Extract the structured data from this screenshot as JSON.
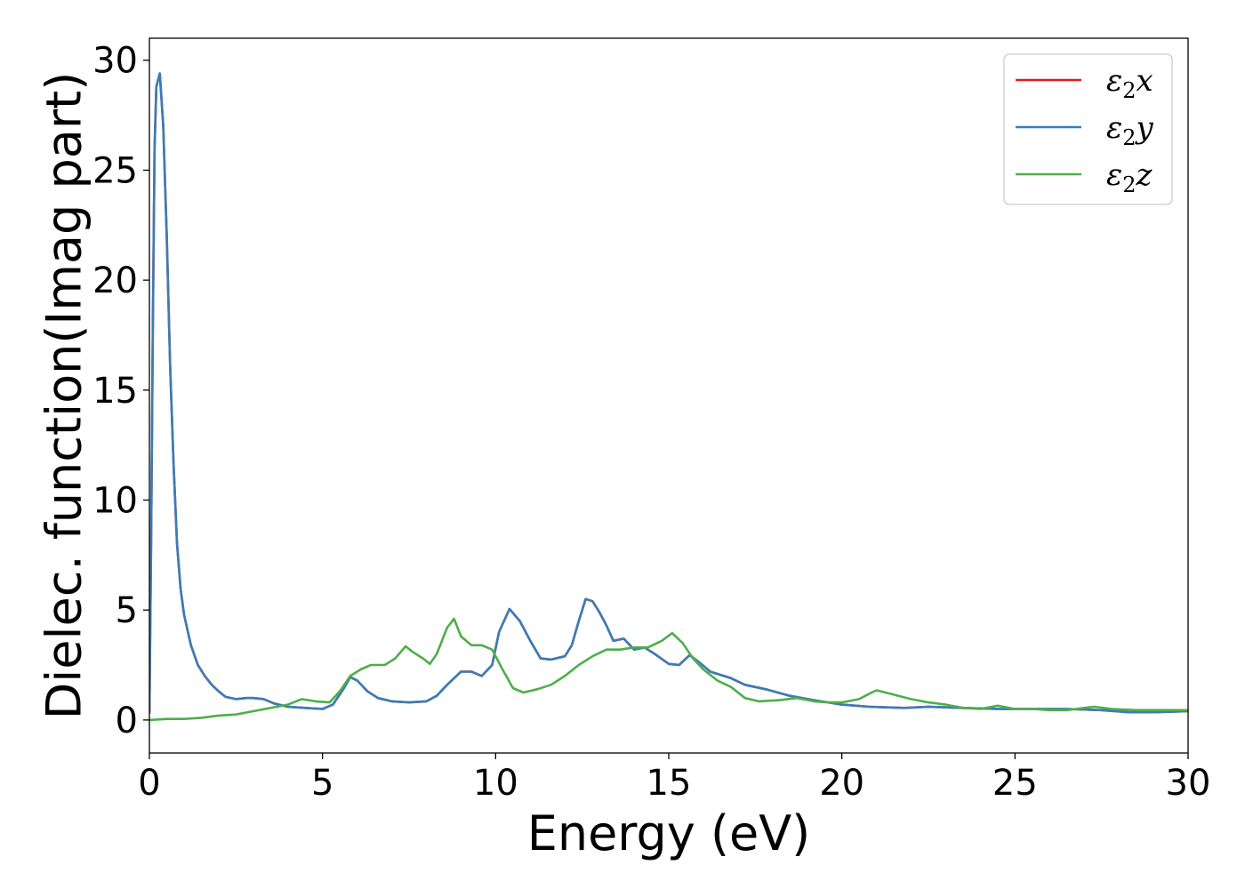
{
  "chart_data": {
    "type": "line",
    "xlabel": "Energy (eV)",
    "ylabel": "Dielec. function(Imag part)",
    "xlim": [
      0,
      30
    ],
    "ylim": [
      -1.5,
      31
    ],
    "xticks": [
      0,
      5,
      10,
      15,
      20,
      25,
      30
    ],
    "yticks": [
      0,
      5,
      10,
      15,
      20,
      25,
      30
    ],
    "grid": false,
    "legend_position": "top-right",
    "series": [
      {
        "name": "ε2x",
        "label_base": "ε",
        "label_sub": "2",
        "label_suffix": "x",
        "color": "#e41a1c",
        "shares_points_with": "ε2y"
      },
      {
        "name": "ε2y",
        "label_base": "ε",
        "label_sub": "2",
        "label_suffix": "y",
        "color": "#377eb8",
        "points": [
          [
            0,
            0.3
          ],
          [
            0.05,
            8
          ],
          [
            0.1,
            18
          ],
          [
            0.15,
            26
          ],
          [
            0.2,
            28.8
          ],
          [
            0.3,
            29.4
          ],
          [
            0.4,
            27
          ],
          [
            0.5,
            22
          ],
          [
            0.6,
            16
          ],
          [
            0.7,
            11.5
          ],
          [
            0.8,
            8
          ],
          [
            0.9,
            6
          ],
          [
            1.0,
            4.8
          ],
          [
            1.2,
            3.4
          ],
          [
            1.4,
            2.5
          ],
          [
            1.6,
            2.0
          ],
          [
            1.8,
            1.6
          ],
          [
            2.0,
            1.3
          ],
          [
            2.2,
            1.05
          ],
          [
            2.5,
            0.95
          ],
          [
            2.8,
            1.0
          ],
          [
            3.0,
            1.0
          ],
          [
            3.3,
            0.95
          ],
          [
            3.6,
            0.75
          ],
          [
            4.0,
            0.6
          ],
          [
            4.5,
            0.55
          ],
          [
            5.0,
            0.5
          ],
          [
            5.3,
            0.7
          ],
          [
            5.6,
            1.4
          ],
          [
            5.8,
            1.95
          ],
          [
            6.0,
            1.8
          ],
          [
            6.3,
            1.3
          ],
          [
            6.6,
            1.0
          ],
          [
            7.0,
            0.85
          ],
          [
            7.5,
            0.8
          ],
          [
            8.0,
            0.85
          ],
          [
            8.3,
            1.1
          ],
          [
            8.6,
            1.6
          ],
          [
            9.0,
            2.2
          ],
          [
            9.3,
            2.2
          ],
          [
            9.6,
            2.0
          ],
          [
            9.9,
            2.5
          ],
          [
            10.1,
            4.0
          ],
          [
            10.4,
            5.05
          ],
          [
            10.7,
            4.5
          ],
          [
            11.0,
            3.6
          ],
          [
            11.3,
            2.8
          ],
          [
            11.6,
            2.75
          ],
          [
            12.0,
            2.9
          ],
          [
            12.2,
            3.4
          ],
          [
            12.4,
            4.5
          ],
          [
            12.6,
            5.5
          ],
          [
            12.8,
            5.4
          ],
          [
            13.0,
            4.9
          ],
          [
            13.2,
            4.3
          ],
          [
            13.4,
            3.6
          ],
          [
            13.7,
            3.7
          ],
          [
            14.0,
            3.2
          ],
          [
            14.3,
            3.3
          ],
          [
            14.6,
            3.0
          ],
          [
            15.0,
            2.55
          ],
          [
            15.3,
            2.5
          ],
          [
            15.6,
            2.95
          ],
          [
            15.9,
            2.6
          ],
          [
            16.2,
            2.2
          ],
          [
            16.8,
            1.9
          ],
          [
            17.2,
            1.6
          ],
          [
            17.8,
            1.4
          ],
          [
            18.5,
            1.1
          ],
          [
            19.2,
            0.9
          ],
          [
            20.0,
            0.7
          ],
          [
            20.8,
            0.6
          ],
          [
            21.8,
            0.55
          ],
          [
            22.5,
            0.6
          ],
          [
            23.5,
            0.55
          ],
          [
            24.5,
            0.5
          ],
          [
            25.5,
            0.5
          ],
          [
            26.5,
            0.5
          ],
          [
            27.5,
            0.45
          ],
          [
            28.3,
            0.35
          ],
          [
            29.0,
            0.35
          ],
          [
            30.0,
            0.4
          ]
        ]
      },
      {
        "name": "ε2z",
        "label_base": "ε",
        "label_sub": "2",
        "label_suffix": "z",
        "color": "#4daf4a",
        "points": [
          [
            0,
            0.0
          ],
          [
            0.5,
            0.05
          ],
          [
            1.0,
            0.05
          ],
          [
            1.5,
            0.1
          ],
          [
            2.0,
            0.2
          ],
          [
            2.5,
            0.25
          ],
          [
            3.0,
            0.4
          ],
          [
            3.5,
            0.55
          ],
          [
            4.0,
            0.7
          ],
          [
            4.4,
            0.95
          ],
          [
            4.8,
            0.85
          ],
          [
            5.2,
            0.8
          ],
          [
            5.5,
            1.3
          ],
          [
            5.8,
            2.0
          ],
          [
            6.1,
            2.3
          ],
          [
            6.4,
            2.5
          ],
          [
            6.8,
            2.5
          ],
          [
            7.1,
            2.8
          ],
          [
            7.4,
            3.35
          ],
          [
            7.6,
            3.1
          ],
          [
            7.9,
            2.8
          ],
          [
            8.1,
            2.55
          ],
          [
            8.3,
            3.0
          ],
          [
            8.6,
            4.2
          ],
          [
            8.8,
            4.6
          ],
          [
            9.0,
            3.8
          ],
          [
            9.3,
            3.4
          ],
          [
            9.6,
            3.4
          ],
          [
            9.9,
            3.2
          ],
          [
            10.2,
            2.3
          ],
          [
            10.5,
            1.45
          ],
          [
            10.8,
            1.25
          ],
          [
            11.2,
            1.4
          ],
          [
            11.6,
            1.6
          ],
          [
            12.0,
            2.0
          ],
          [
            12.4,
            2.5
          ],
          [
            12.8,
            2.9
          ],
          [
            13.2,
            3.2
          ],
          [
            13.6,
            3.2
          ],
          [
            14.0,
            3.3
          ],
          [
            14.4,
            3.3
          ],
          [
            14.8,
            3.6
          ],
          [
            15.1,
            3.95
          ],
          [
            15.4,
            3.5
          ],
          [
            15.7,
            2.8
          ],
          [
            16.0,
            2.3
          ],
          [
            16.4,
            1.8
          ],
          [
            16.8,
            1.5
          ],
          [
            17.2,
            1.0
          ],
          [
            17.6,
            0.85
          ],
          [
            18.2,
            0.9
          ],
          [
            18.7,
            1.0
          ],
          [
            19.2,
            0.85
          ],
          [
            19.6,
            0.8
          ],
          [
            20.0,
            0.8
          ],
          [
            20.5,
            0.95
          ],
          [
            20.8,
            1.2
          ],
          [
            21.0,
            1.35
          ],
          [
            21.5,
            1.15
          ],
          [
            22.0,
            0.95
          ],
          [
            22.5,
            0.8
          ],
          [
            23.0,
            0.7
          ],
          [
            23.5,
            0.55
          ],
          [
            24.0,
            0.5
          ],
          [
            24.5,
            0.65
          ],
          [
            25.0,
            0.5
          ],
          [
            25.5,
            0.5
          ],
          [
            26.0,
            0.45
          ],
          [
            26.5,
            0.45
          ],
          [
            27.0,
            0.55
          ],
          [
            27.3,
            0.6
          ],
          [
            27.8,
            0.5
          ],
          [
            28.5,
            0.45
          ],
          [
            29.2,
            0.45
          ],
          [
            30.0,
            0.45
          ]
        ]
      }
    ]
  }
}
